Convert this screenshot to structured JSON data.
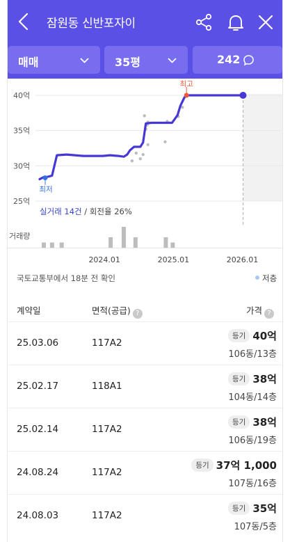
{
  "header": {
    "title": "잠원동 신반포자이",
    "bg": "#5b50e6"
  },
  "filters": {
    "trade_type": "매매",
    "size": "35평",
    "comments": "242"
  },
  "chart_data": {
    "type": "line",
    "y_ticks": [
      "40억",
      "35억",
      "30억",
      "25억"
    ],
    "y_tick_values": [
      40,
      35,
      30,
      25
    ],
    "ylim": [
      25,
      40
    ],
    "x_ticks": [
      "2024.01",
      "2025.01",
      "2026.01"
    ],
    "x_tick_values": [
      2024.0,
      2025.0,
      2026.0
    ],
    "xlim": [
      2023.06,
      2026.58
    ],
    "series": [
      {
        "x": [
          2023.06,
          2023.12,
          2023.16,
          2023.24,
          2023.31,
          2023.45,
          2023.69,
          2023.98,
          2024.08,
          2024.2,
          2024.28,
          2024.33,
          2024.37,
          2024.43,
          2024.52,
          2024.56,
          2024.6,
          2024.68,
          2024.78,
          2024.98,
          2025.06,
          2025.1,
          2025.16,
          2025.19,
          2025.3,
          2025.7,
          2026.01
        ],
        "values": [
          28.1,
          28.4,
          28.4,
          28.6,
          31.5,
          31.6,
          31.4,
          31.4,
          31.5,
          31.4,
          31.3,
          31.6,
          32.2,
          32.7,
          32.7,
          33.3,
          36.0,
          36.1,
          36.1,
          36.1,
          37.2,
          38.5,
          39.7,
          40.0,
          40.0,
          40.0,
          40.0
        ]
      }
    ],
    "transactions": [
      {
        "x": 2024.4,
        "y": 30.7
      },
      {
        "x": 2024.46,
        "y": 31.8
      },
      {
        "x": 2024.52,
        "y": 31.0
      },
      {
        "x": 2024.56,
        "y": 31.6
      },
      {
        "x": 2024.63,
        "y": 33.0
      },
      {
        "x": 2024.88,
        "y": 33.4
      },
      {
        "x": 2024.91,
        "y": 36.3
      },
      {
        "x": 2025.07,
        "y": 37.0
      },
      {
        "x": 2025.13,
        "y": 38.3
      },
      {
        "x": 2024.6,
        "y": 35.2
      },
      {
        "x": 2024.62,
        "y": 35.8
      },
      {
        "x": 2024.63,
        "y": 36.2
      },
      {
        "x": 2024.58,
        "y": 37.1
      }
    ],
    "volume": {
      "label": "거래량",
      "x": [
        2023.12,
        2023.24,
        2023.38,
        2024.09,
        2024.28,
        2024.45,
        2024.89,
        2024.99
      ],
      "values": [
        1,
        1,
        1,
        2,
        4,
        2,
        2,
        1
      ]
    },
    "annotations": {
      "max": "최고",
      "min": "최저",
      "summary_count": "실거래 14건",
      "summary_rate": " / 회전율 26%"
    },
    "colors": {
      "line": "#4638d4",
      "max": "#ee5a3a",
      "min": "#3470e0",
      "bar": "#bdbdbd"
    }
  },
  "meta": {
    "source": "국토교통부에서 18분 전 확인",
    "legend": "저층"
  },
  "table": {
    "columns": [
      "계약일",
      "면적(공급)",
      "가격"
    ],
    "rows": [
      {
        "date": "25.03.06",
        "area": "117A2",
        "tag": "등기",
        "price": "40억",
        "unit": "106동/13층"
      },
      {
        "date": "25.02.17",
        "area": "118A1",
        "tag": "등기",
        "price": "38억",
        "unit": "104동/14층"
      },
      {
        "date": "25.02.14",
        "area": "117A2",
        "tag": "등기",
        "price": "38억",
        "unit": "106동/19층"
      },
      {
        "date": "24.08.24",
        "area": "117A2",
        "tag": "등기",
        "price": "37억 1,000",
        "unit": "107동/16층"
      },
      {
        "date": "24.08.03",
        "area": "117A2",
        "tag": "등기",
        "price": "35억",
        "unit": "107동/5층"
      }
    ]
  }
}
